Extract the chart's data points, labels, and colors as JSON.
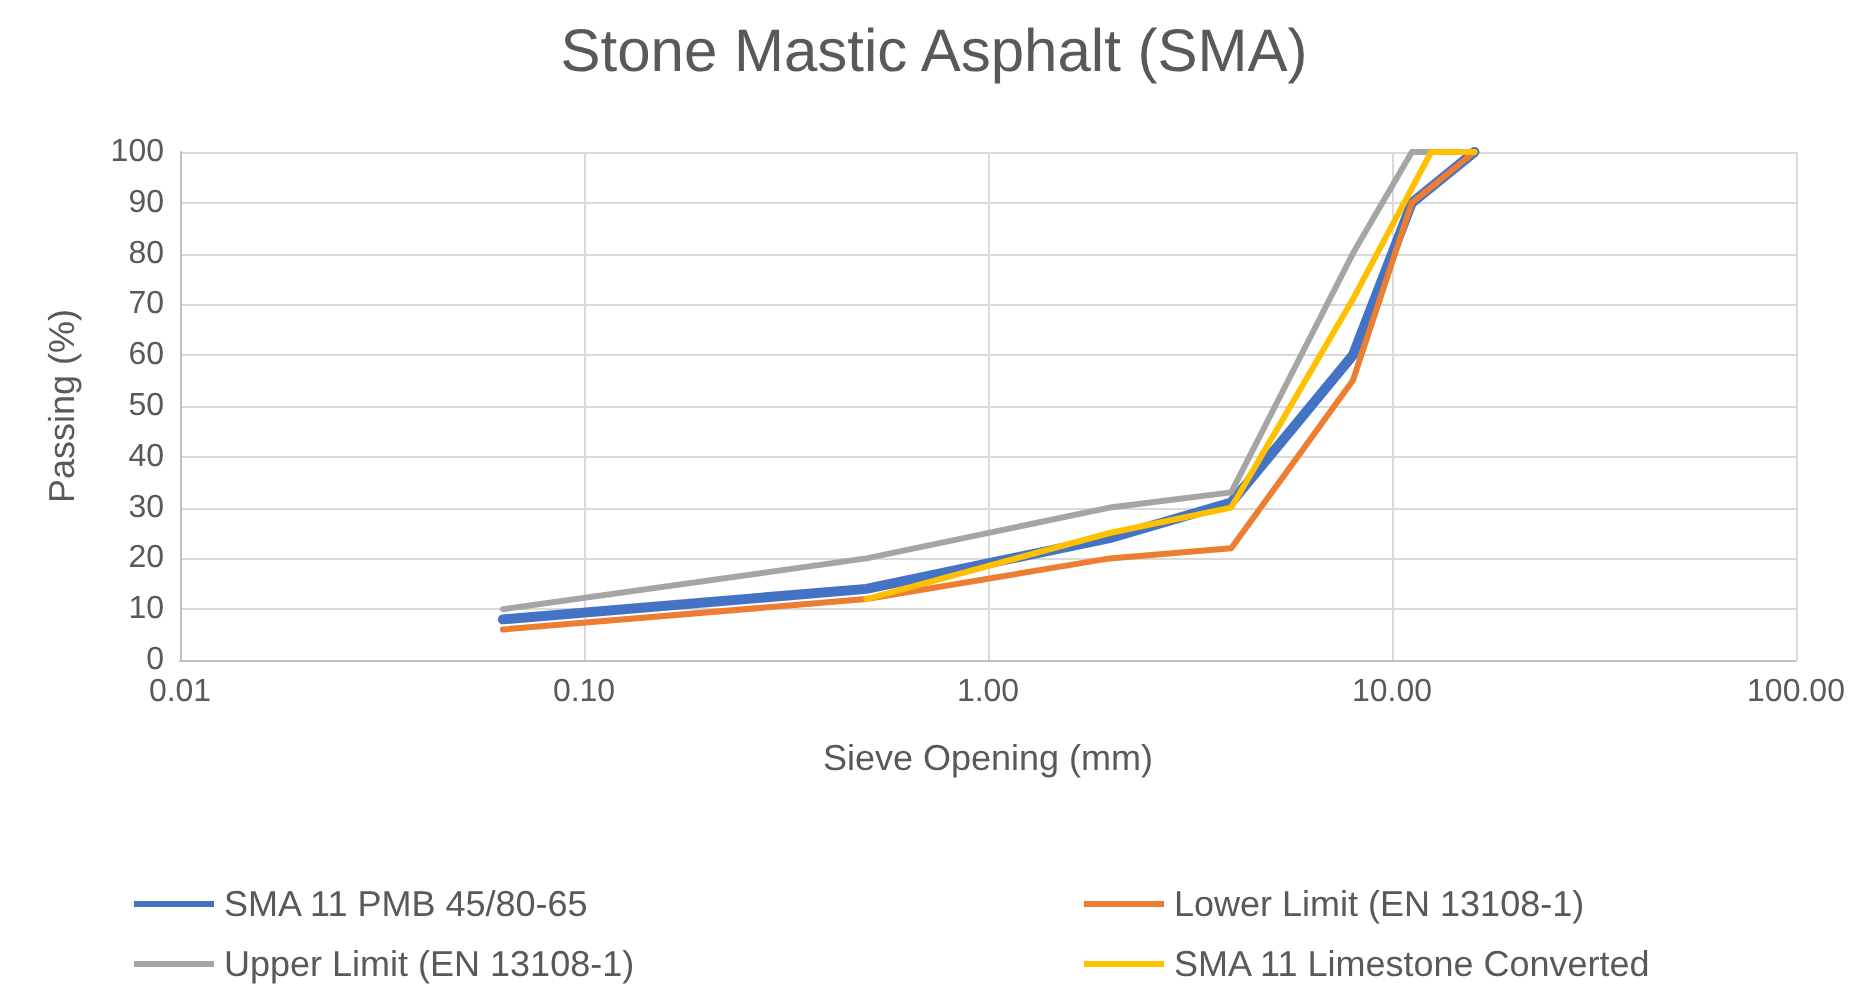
{
  "chart_data": {
    "type": "line",
    "title": "Stone Mastic Asphalt (SMA)",
    "xlabel": "Sieve Opening (mm)",
    "ylabel": "Passing (%)",
    "x": [
      0.063,
      0.5,
      2,
      4,
      8,
      11.2,
      16
    ],
    "series": [
      {
        "name": "SMA 11 PMB 45/80-65",
        "color": "#4472c4",
        "values": [
          8,
          14,
          24,
          31,
          60,
          90,
          100
        ]
      },
      {
        "name": "Lower Limit (EN 13108-1)",
        "color": "#ed7d31",
        "values": [
          6,
          12,
          20,
          22,
          55,
          90,
          100
        ]
      },
      {
        "name": "Upper Limit (EN 13108-1)",
        "color": "#a5a5a5",
        "values": [
          10,
          20,
          30,
          33,
          80,
          100,
          100
        ]
      },
      {
        "name": "SMA 11 Limestone Converted",
        "color": "#ffc000",
        "x": [
          0.5,
          2,
          4,
          8,
          12.5,
          16
        ],
        "values": [
          12,
          25,
          30,
          71,
          100,
          100
        ]
      }
    ],
    "log": "x",
    "xlim": [
      0.01,
      100
    ],
    "xticks": [
      {
        "value": 0.01,
        "label": "0.01"
      },
      {
        "value": 0.1,
        "label": "0.10"
      },
      {
        "value": 1,
        "label": "1.00"
      },
      {
        "value": 10,
        "label": "10.00"
      },
      {
        "value": 100,
        "label": "100.00"
      }
    ],
    "ylim": [
      0,
      100
    ],
    "yticks": [
      0,
      10,
      20,
      30,
      40,
      50,
      60,
      70,
      80,
      90,
      100
    ],
    "grid": true,
    "legend": "bottom",
    "marker": "none",
    "line_style": "solid"
  }
}
